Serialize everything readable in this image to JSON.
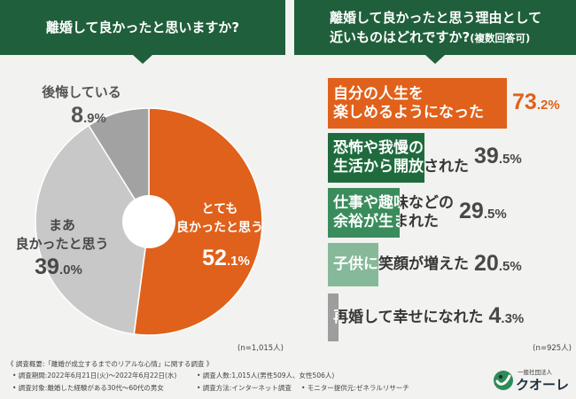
{
  "colors": {
    "header_green": "#205f3b",
    "background": "#f2f2f0"
  },
  "chart_data": [
    {
      "type": "pie",
      "title": "離婚して良かったと思いますか?",
      "n_label": "(n=1,015人)",
      "unit": "%",
      "slices": [
        {
          "label": [
            "とても",
            "良かったと思う"
          ],
          "value": 52.1,
          "color": "#e0611b",
          "text_color": "#ffffff"
        },
        {
          "label": [
            "まあ",
            "良かったと思う"
          ],
          "value": 39.0,
          "color": "#c8c8c8",
          "text_color": "#484848"
        },
        {
          "label": [
            "後悔している"
          ],
          "value": 8.9,
          "color": "#a2a2a2",
          "text_color": "#555555"
        }
      ]
    },
    {
      "type": "bar",
      "title_lines": [
        "離婚して良かったと思う理由として",
        "近いものはどれですか?"
      ],
      "subtitle": "(複数回答可)",
      "n_label": "(n=925人)",
      "unit": "%",
      "categories": [
        [
          "自分の人生を",
          "楽しめるようになった"
        ],
        [
          "恐怖や我慢の",
          "生活から開放された"
        ],
        [
          "仕事や趣味などの",
          "余裕が生まれた"
        ],
        [
          "子供に笑顔が増えた"
        ],
        [
          "再婚して幸せになれた"
        ]
      ],
      "values": [
        73.2,
        39.5,
        29.5,
        20.5,
        4.3
      ],
      "colors": [
        "#e0611b",
        "#1f6b3d",
        "#3b8c5c",
        "#86b999",
        "#9d9d9d"
      ],
      "value_colors": [
        "#e0611b",
        "#484848",
        "#484848",
        "#484848",
        "#484848"
      ]
    }
  ],
  "footer": {
    "survey_title": "《 調査概要:「離婚が成立するまでのリアルな心情」に関する調査 》",
    "period": "• 調査期間:2022年6月21日(火)〜2022年6月22日(水)",
    "respondents": "• 調査人数:1,015人(男性509人、女性506人)",
    "target": "• 調査対象:離婚した経験がある30代〜60代の男女",
    "method": "• 調査方法:インターネット調査",
    "provider": "• モニター提供元:ゼネラルリサーチ"
  },
  "logo": {
    "org_type": "一般社団法人",
    "name": "クオーレ"
  }
}
